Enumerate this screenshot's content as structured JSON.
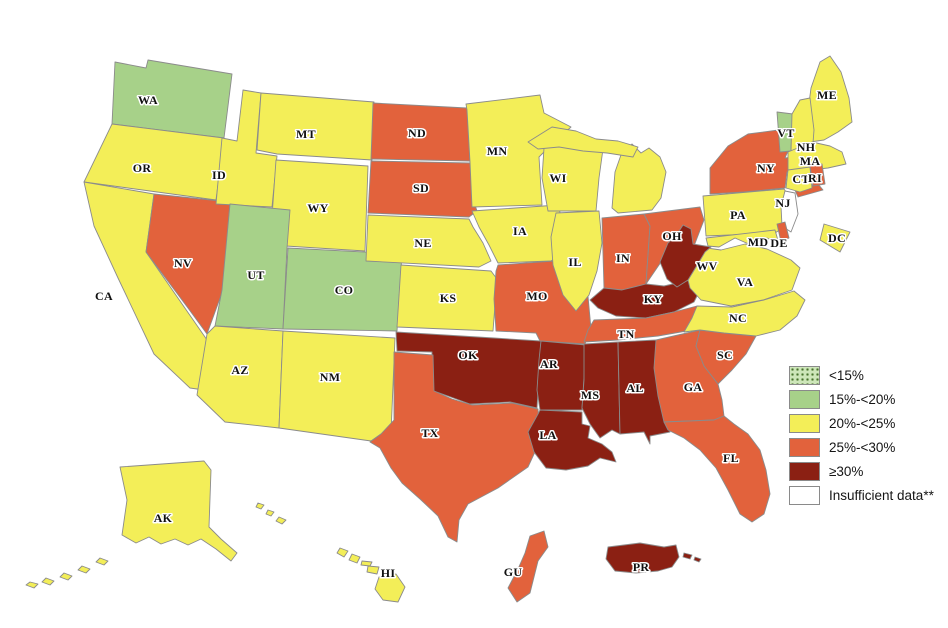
{
  "legend": {
    "items": [
      {
        "label": "<15%",
        "fill": "#cde6b9",
        "pattern": "dots",
        "dot_color": "#47722c"
      },
      {
        "label": "15%-<20%",
        "fill": "#a7d189",
        "pattern": "solid"
      },
      {
        "label": "20%-<25%",
        "fill": "#f3ee58",
        "pattern": "solid"
      },
      {
        "label": "25%-<30%",
        "fill": "#e2623c",
        "pattern": "solid"
      },
      {
        "label": "≥30%",
        "fill": "#8b2013",
        "pattern": "solid"
      },
      {
        "label": "Insufficient data**",
        "fill": "#ffffff",
        "pattern": "solid"
      }
    ]
  },
  "categories": {
    "lt15": {
      "label": "<15%",
      "color": "#cde6b9"
    },
    "p15_20": {
      "label": "15%-<20%",
      "color": "#a7d189"
    },
    "p20_25": {
      "label": "20%-<25%",
      "color": "#f3ee58"
    },
    "p25_30": {
      "label": "25%-<30%",
      "color": "#e2623c"
    },
    "gte30": {
      "label": "≥30%",
      "color": "#8b2013"
    },
    "insufficient": {
      "label": "Insufficient data**",
      "color": "#ffffff"
    }
  },
  "states": [
    {
      "abbr": "WA",
      "category": "p15_20"
    },
    {
      "abbr": "OR",
      "category": "p20_25"
    },
    {
      "abbr": "CA",
      "category": "p20_25"
    },
    {
      "abbr": "NV",
      "category": "p25_30"
    },
    {
      "abbr": "ID",
      "category": "p20_25"
    },
    {
      "abbr": "MT",
      "category": "p20_25"
    },
    {
      "abbr": "WY",
      "category": "p20_25"
    },
    {
      "abbr": "UT",
      "category": "p15_20"
    },
    {
      "abbr": "CO",
      "category": "p15_20"
    },
    {
      "abbr": "AZ",
      "category": "p20_25"
    },
    {
      "abbr": "NM",
      "category": "p20_25"
    },
    {
      "abbr": "ND",
      "category": "p25_30"
    },
    {
      "abbr": "SD",
      "category": "p25_30"
    },
    {
      "abbr": "NE",
      "category": "p20_25"
    },
    {
      "abbr": "KS",
      "category": "p20_25"
    },
    {
      "abbr": "OK",
      "category": "gte30"
    },
    {
      "abbr": "TX",
      "category": "p25_30"
    },
    {
      "abbr": "MN",
      "category": "p20_25"
    },
    {
      "abbr": "IA",
      "category": "p20_25"
    },
    {
      "abbr": "MO",
      "category": "p25_30"
    },
    {
      "abbr": "AR",
      "category": "gte30"
    },
    {
      "abbr": "LA",
      "category": "gte30"
    },
    {
      "abbr": "WI",
      "category": "p20_25"
    },
    {
      "abbr": "IL",
      "category": "p20_25"
    },
    {
      "abbr": "MI",
      "category": "p20_25"
    },
    {
      "abbr": "IN",
      "category": "p25_30"
    },
    {
      "abbr": "OH",
      "category": "p25_30"
    },
    {
      "abbr": "KY",
      "category": "gte30"
    },
    {
      "abbr": "TN",
      "category": "p25_30"
    },
    {
      "abbr": "MS",
      "category": "gte30"
    },
    {
      "abbr": "AL",
      "category": "gte30"
    },
    {
      "abbr": "GA",
      "category": "p25_30"
    },
    {
      "abbr": "FL",
      "category": "p25_30"
    },
    {
      "abbr": "SC",
      "category": "p25_30"
    },
    {
      "abbr": "NC",
      "category": "p20_25"
    },
    {
      "abbr": "VA",
      "category": "p20_25"
    },
    {
      "abbr": "WV",
      "category": "gte30"
    },
    {
      "abbr": "PA",
      "category": "p20_25"
    },
    {
      "abbr": "NY",
      "category": "p25_30"
    },
    {
      "abbr": "NJ",
      "category": "insufficient"
    },
    {
      "abbr": "MD",
      "category": "p20_25"
    },
    {
      "abbr": "DE",
      "category": "p25_30"
    },
    {
      "abbr": "DC",
      "category": "p20_25"
    },
    {
      "abbr": "ME",
      "category": "p20_25"
    },
    {
      "abbr": "VT",
      "category": "p15_20"
    },
    {
      "abbr": "NH",
      "category": "p20_25"
    },
    {
      "abbr": "MA",
      "category": "p20_25"
    },
    {
      "abbr": "CT",
      "category": "p20_25"
    },
    {
      "abbr": "RI",
      "category": "p25_30"
    },
    {
      "abbr": "AK",
      "category": "p20_25"
    },
    {
      "abbr": "HI",
      "category": "p20_25"
    },
    {
      "abbr": "GU",
      "category": "p25_30"
    },
    {
      "abbr": "PR",
      "category": "gte30"
    }
  ]
}
